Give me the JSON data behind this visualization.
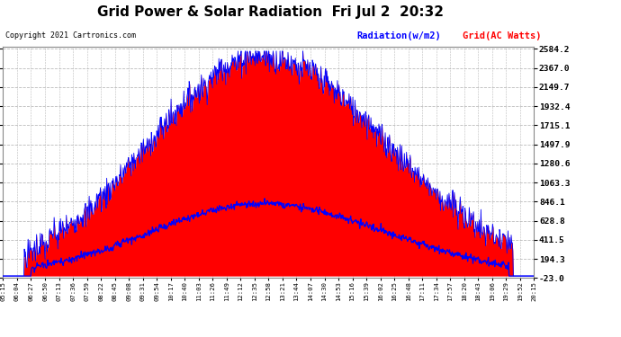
{
  "title": "Grid Power & Solar Radiation  Fri Jul 2  20:32",
  "copyright": "Copyright 2021 Cartronics.com",
  "legend_radiation": "Radiation(w/m2)",
  "legend_grid": "Grid(AC Watts)",
  "ymin": -23.0,
  "ymax": 2584.2,
  "yticks": [
    2584.2,
    2367.0,
    2149.7,
    1932.4,
    1715.1,
    1497.9,
    1280.6,
    1063.3,
    846.1,
    628.8,
    411.5,
    194.3,
    -23.0
  ],
  "background_color": "#ffffff",
  "plot_bg_color": "#ffffff",
  "fill_color": "#ff0000",
  "line_color_blue": "#0000ff",
  "grid_color": "#aaaaaa",
  "xtick_labels": [
    "05:15",
    "06:04",
    "06:27",
    "06:50",
    "07:13",
    "07:36",
    "07:59",
    "08:22",
    "08:45",
    "09:08",
    "09:31",
    "09:54",
    "10:17",
    "10:40",
    "11:03",
    "11:26",
    "11:49",
    "12:12",
    "12:35",
    "12:58",
    "13:21",
    "13:44",
    "14:07",
    "14:30",
    "14:53",
    "15:16",
    "15:39",
    "16:02",
    "16:25",
    "16:48",
    "17:11",
    "17:34",
    "17:57",
    "18:20",
    "18:43",
    "19:06",
    "19:29",
    "19:52",
    "20:15"
  ]
}
